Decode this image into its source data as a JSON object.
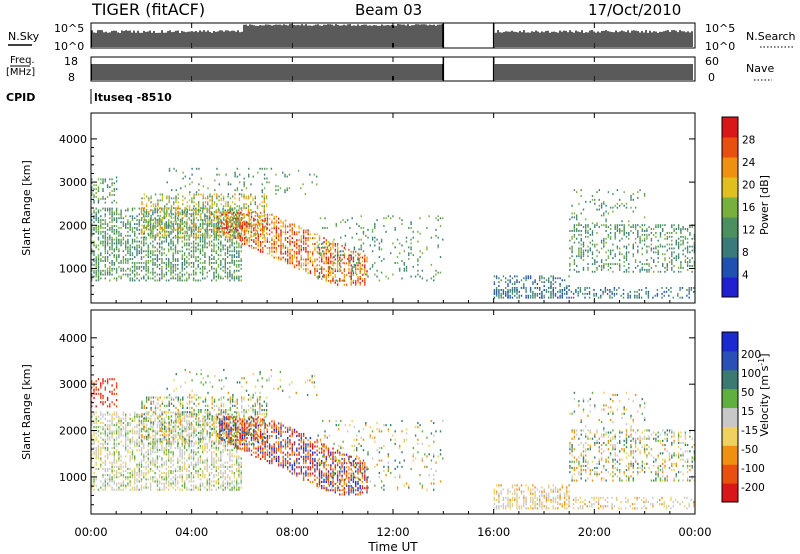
{
  "header": {
    "station": "TIGER (fitACF)",
    "beam": "Beam 03",
    "date": "17/Oct/2010"
  },
  "nsky_panel": {
    "left_label": "N.Sky",
    "right_label": "N.Search",
    "left_ticks": [
      "10^5",
      "10^0"
    ],
    "right_ticks": [
      "10^5",
      "10^0"
    ]
  },
  "freq_panel": {
    "left_label_line1": "Freq.",
    "left_label_line2": "[MHz]",
    "left_ticks": [
      "18",
      "8"
    ],
    "right_label": "Nave",
    "right_ticks": [
      "60",
      "0"
    ]
  },
  "cpid": {
    "label": "CPID",
    "value": "ltuseq -8510"
  },
  "colors": {
    "power_scale": [
      "#2020d0",
      "#2050b0",
      "#3a7a7a",
      "#4c9060",
      "#78b040",
      "#e0c020",
      "#f09010",
      "#e85010",
      "#d81818"
    ],
    "velocity_scale": [
      "#1a2ad0",
      "#2a50b8",
      "#3a7a70",
      "#60b040",
      "#c8c8c8",
      "#f0d060",
      "#f09010",
      "#e85010",
      "#d81818"
    ]
  },
  "chart_data": [
    {
      "type": "heatmap",
      "name": "power",
      "ylabel": "Slant Range [km]",
      "ylim": [
        200,
        4600
      ],
      "yticks": [
        "1000",
        "2000",
        "3000",
        "4000"
      ],
      "xlim": [
        0,
        24
      ],
      "colorbar_label": "Power [dB]",
      "colorbar_ticks": [
        "4",
        "8",
        "12",
        "16",
        "20",
        "24",
        "28"
      ],
      "colorbar_range": [
        0,
        32
      ],
      "data_gap": [
        14,
        16
      ]
    },
    {
      "type": "heatmap",
      "name": "velocity",
      "ylabel": "Slant Range [km]",
      "ylim": [
        200,
        4600
      ],
      "yticks": [
        "1000",
        "2000",
        "3000",
        "4000"
      ],
      "xlim": [
        0,
        24
      ],
      "colorbar_label": "Velocity [m s",
      "colorbar_label_sup": "-1",
      "colorbar_label_end": "]",
      "colorbar_ticks": [
        "200",
        "100",
        "50",
        "15",
        "-15",
        "-50",
        "-100",
        "-200"
      ],
      "data_gap": [
        14,
        16
      ]
    }
  ],
  "xaxis": {
    "label": "Time UT",
    "ticks": [
      "00:00",
      "04:00",
      "08:00",
      "12:00",
      "16:00",
      "20:00",
      "00:00"
    ]
  }
}
